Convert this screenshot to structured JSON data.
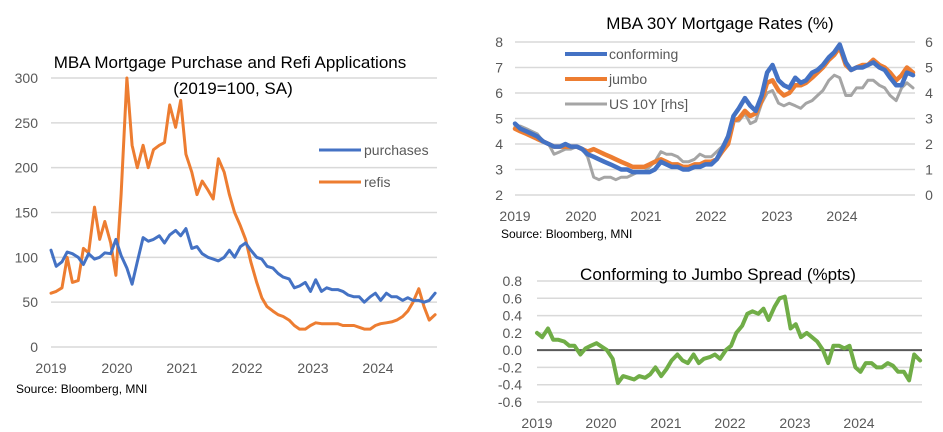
{
  "chart_data": [
    {
      "id": "applications",
      "type": "line",
      "title": "MBA Mortgage Purchase and Refi Applications",
      "subtitle": "(2019=100, SA)",
      "source": "Source: Bloomberg, MNI",
      "xlabel": "",
      "ylabel": "",
      "x_ticks": [
        "2019",
        "2020",
        "2021",
        "2022",
        "2023",
        "2024"
      ],
      "x_range": [
        2019.0,
        2024.95
      ],
      "ylim": [
        0,
        300
      ],
      "y_ticks": [
        "0",
        "50",
        "100",
        "150",
        "200",
        "250",
        "300"
      ],
      "y_tick_values": [
        0,
        50,
        100,
        150,
        200,
        250,
        300
      ],
      "grid": true,
      "legend": "right",
      "x": [
        2019.0,
        2019.08,
        2019.17,
        2019.25,
        2019.33,
        2019.42,
        2019.5,
        2019.58,
        2019.67,
        2019.75,
        2019.83,
        2019.92,
        2020.0,
        2020.08,
        2020.17,
        2020.25,
        2020.33,
        2020.42,
        2020.5,
        2020.58,
        2020.67,
        2020.75,
        2020.83,
        2020.92,
        2021.0,
        2021.08,
        2021.17,
        2021.25,
        2021.33,
        2021.42,
        2021.5,
        2021.58,
        2021.67,
        2021.75,
        2021.83,
        2021.92,
        2022.0,
        2022.08,
        2022.17,
        2022.25,
        2022.33,
        2022.42,
        2022.5,
        2022.58,
        2022.67,
        2022.75,
        2022.83,
        2022.92,
        2023.0,
        2023.08,
        2023.17,
        2023.25,
        2023.33,
        2023.42,
        2023.5,
        2023.58,
        2023.67,
        2023.75,
        2023.83,
        2023.92,
        2024.0,
        2024.08,
        2024.17,
        2024.25,
        2024.33,
        2024.42,
        2024.5,
        2024.58,
        2024.67,
        2024.75,
        2024.83,
        2024.92
      ],
      "series": [
        {
          "name": "purchases",
          "color": "#4472c4",
          "values": [
            108,
            90,
            95,
            106,
            104,
            100,
            92,
            104,
            98,
            100,
            105,
            104,
            120,
            102,
            88,
            70,
            95,
            122,
            118,
            120,
            124,
            116,
            125,
            130,
            124,
            132,
            110,
            112,
            104,
            100,
            98,
            96,
            100,
            108,
            100,
            112,
            116,
            108,
            100,
            98,
            90,
            88,
            82,
            78,
            76,
            66,
            68,
            72,
            62,
            75,
            62,
            66,
            64,
            64,
            62,
            58,
            56,
            56,
            50,
            56,
            60,
            52,
            60,
            56,
            56,
            52,
            55,
            52,
            52,
            50,
            52,
            60
          ]
        },
        {
          "name": "refis",
          "color": "#ed7d31",
          "values": [
            60,
            62,
            66,
            100,
            72,
            74,
            110,
            105,
            156,
            120,
            140,
            116,
            80,
            170,
            300,
            225,
            200,
            225,
            200,
            220,
            225,
            228,
            270,
            245,
            275,
            215,
            195,
            170,
            185,
            175,
            165,
            210,
            195,
            170,
            150,
            135,
            120,
            95,
            72,
            55,
            45,
            40,
            36,
            34,
            30,
            24,
            20,
            20,
            24,
            27,
            26,
            26,
            26,
            26,
            24,
            24,
            24,
            22,
            20,
            20,
            24,
            26,
            27,
            28,
            30,
            34,
            40,
            50,
            65,
            45,
            30,
            36
          ]
        }
      ]
    },
    {
      "id": "rates",
      "type": "line",
      "title": "MBA 30Y Mortgage Rates (%)",
      "source": "Source: Bloomberg, MNI",
      "x_ticks": [
        "2019",
        "2020",
        "2021",
        "2022",
        "2023",
        "2024"
      ],
      "x_range": [
        2019.0,
        2024.95
      ],
      "ylim": [
        2,
        8
      ],
      "y2lim": [
        0,
        6
      ],
      "y_ticks": [
        "2",
        "3",
        "4",
        "5",
        "6",
        "7",
        "8"
      ],
      "y_tick_values": [
        2,
        3,
        4,
        5,
        6,
        7,
        8
      ],
      "y2_ticks": [
        "0",
        "1",
        "2",
        "3",
        "4",
        "5",
        "6"
      ],
      "y2_tick_values": [
        0,
        1,
        2,
        3,
        4,
        5,
        6
      ],
      "grid": true,
      "legend": "top-left",
      "x": [
        2019.0,
        2019.08,
        2019.17,
        2019.25,
        2019.33,
        2019.42,
        2019.5,
        2019.58,
        2019.67,
        2019.75,
        2019.83,
        2019.92,
        2020.0,
        2020.08,
        2020.17,
        2020.25,
        2020.33,
        2020.42,
        2020.5,
        2020.58,
        2020.67,
        2020.75,
        2020.83,
        2020.92,
        2021.0,
        2021.08,
        2021.17,
        2021.25,
        2021.33,
        2021.42,
        2021.5,
        2021.58,
        2021.67,
        2021.75,
        2021.83,
        2021.92,
        2022.0,
        2022.08,
        2022.17,
        2022.25,
        2022.33,
        2022.42,
        2022.5,
        2022.58,
        2022.67,
        2022.75,
        2022.83,
        2022.92,
        2023.0,
        2023.08,
        2023.17,
        2023.25,
        2023.33,
        2023.42,
        2023.5,
        2023.58,
        2023.67,
        2023.75,
        2023.83,
        2023.92,
        2024.0,
        2024.08,
        2024.17,
        2024.25,
        2024.33,
        2024.42,
        2024.5,
        2024.58,
        2024.67,
        2024.75,
        2024.83,
        2024.92
      ],
      "series": [
        {
          "name": "conforming",
          "axis": "left",
          "color": "#4472c4",
          "values": [
            4.8,
            4.6,
            4.5,
            4.4,
            4.3,
            4.1,
            4.0,
            3.9,
            3.9,
            4.0,
            3.9,
            3.9,
            3.8,
            3.6,
            3.5,
            3.4,
            3.3,
            3.2,
            3.1,
            3.0,
            3.0,
            2.9,
            2.9,
            2.9,
            2.9,
            3.0,
            3.3,
            3.2,
            3.1,
            3.1,
            3.0,
            3.0,
            3.1,
            3.1,
            3.2,
            3.2,
            3.4,
            3.8,
            4.3,
            5.1,
            5.4,
            5.8,
            5.5,
            5.3,
            5.9,
            6.8,
            7.1,
            6.5,
            6.3,
            6.2,
            6.6,
            6.4,
            6.5,
            6.8,
            6.9,
            7.1,
            7.4,
            7.6,
            7.9,
            7.2,
            6.9,
            7.0,
            7.0,
            7.1,
            7.2,
            7.0,
            6.9,
            6.6,
            6.3,
            6.3,
            6.8,
            6.7
          ]
        },
        {
          "name": "jumbo",
          "axis": "left",
          "color": "#ed7d31",
          "values": [
            4.6,
            4.5,
            4.4,
            4.3,
            4.2,
            4.1,
            4.0,
            3.9,
            3.9,
            3.9,
            3.9,
            3.9,
            3.8,
            3.7,
            3.8,
            3.7,
            3.6,
            3.5,
            3.4,
            3.3,
            3.2,
            3.1,
            3.1,
            3.1,
            3.2,
            3.3,
            3.4,
            3.3,
            3.2,
            3.2,
            3.1,
            3.1,
            3.2,
            3.2,
            3.3,
            3.3,
            3.4,
            3.7,
            4.0,
            4.9,
            5.0,
            5.3,
            5.1,
            5.2,
            5.7,
            6.4,
            6.5,
            6.1,
            5.9,
            6.0,
            6.3,
            6.3,
            6.4,
            6.6,
            6.8,
            7.0,
            7.3,
            7.5,
            7.8,
            7.1,
            6.9,
            7.0,
            7.1,
            7.1,
            7.3,
            7.1,
            7.0,
            6.8,
            6.5,
            6.7,
            7.0,
            6.8
          ]
        },
        {
          "name": "US 10Y [rhs]",
          "axis": "right",
          "color": "#a5a5a5",
          "values": [
            2.7,
            2.7,
            2.6,
            2.5,
            2.4,
            2.1,
            2.0,
            1.6,
            1.7,
            1.8,
            1.8,
            1.9,
            1.8,
            1.5,
            0.7,
            0.6,
            0.7,
            0.7,
            0.6,
            0.7,
            0.7,
            0.8,
            0.9,
            0.9,
            1.1,
            1.3,
            1.7,
            1.6,
            1.6,
            1.5,
            1.3,
            1.3,
            1.4,
            1.6,
            1.5,
            1.5,
            1.7,
            1.9,
            2.3,
            2.9,
            2.9,
            3.2,
            2.8,
            2.9,
            3.6,
            4.0,
            4.1,
            3.6,
            3.5,
            3.6,
            3.5,
            3.4,
            3.6,
            3.7,
            3.9,
            4.1,
            4.5,
            4.7,
            4.6,
            3.9,
            3.9,
            4.2,
            4.2,
            4.5,
            4.5,
            4.3,
            4.2,
            3.9,
            3.7,
            4.2,
            4.4,
            4.2
          ]
        }
      ]
    },
    {
      "id": "spread",
      "type": "line",
      "title": "Conforming to Jumbo Spread (%pts)",
      "x_ticks": [
        "2019",
        "2020",
        "2021",
        "2022",
        "2023",
        "2024"
      ],
      "x_range": [
        2019.0,
        2024.95
      ],
      "ylim": [
        -0.6,
        0.8
      ],
      "y_ticks": [
        "0.8",
        "0.6",
        "0.4",
        "0.2",
        "0.0",
        "-0.2",
        "-0.4",
        "-0.6"
      ],
      "y_tick_values": [
        0.8,
        0.6,
        0.4,
        0.2,
        0.0,
        -0.2,
        -0.4,
        -0.6
      ],
      "grid": true,
      "legend": "none",
      "x": [
        2019.0,
        2019.08,
        2019.17,
        2019.25,
        2019.33,
        2019.42,
        2019.5,
        2019.58,
        2019.67,
        2019.75,
        2019.83,
        2019.92,
        2020.0,
        2020.08,
        2020.17,
        2020.25,
        2020.33,
        2020.42,
        2020.5,
        2020.58,
        2020.67,
        2020.75,
        2020.83,
        2020.92,
        2021.0,
        2021.08,
        2021.17,
        2021.25,
        2021.33,
        2021.42,
        2021.5,
        2021.58,
        2021.67,
        2021.75,
        2021.83,
        2021.92,
        2022.0,
        2022.08,
        2022.17,
        2022.25,
        2022.33,
        2022.42,
        2022.5,
        2022.58,
        2022.67,
        2022.75,
        2022.83,
        2022.92,
        2023.0,
        2023.08,
        2023.17,
        2023.25,
        2023.33,
        2023.42,
        2023.5,
        2023.58,
        2023.67,
        2023.75,
        2023.83,
        2023.92,
        2024.0,
        2024.08,
        2024.17,
        2024.25,
        2024.33,
        2024.42,
        2024.5,
        2024.58,
        2024.67,
        2024.75,
        2024.83,
        2024.92
      ],
      "series": [
        {
          "name": "spread",
          "color": "#70ad47",
          "values": [
            0.2,
            0.15,
            0.25,
            0.12,
            0.12,
            0.1,
            0.05,
            0.05,
            -0.05,
            0.02,
            0.05,
            0.08,
            0.04,
            0.0,
            -0.1,
            -0.38,
            -0.3,
            -0.32,
            -0.34,
            -0.3,
            -0.32,
            -0.28,
            -0.2,
            -0.3,
            -0.22,
            -0.12,
            -0.05,
            -0.12,
            -0.15,
            -0.05,
            -0.15,
            -0.1,
            -0.08,
            -0.05,
            -0.1,
            0.0,
            0.05,
            0.2,
            0.28,
            0.42,
            0.45,
            0.42,
            0.48,
            0.35,
            0.5,
            0.6,
            0.62,
            0.25,
            0.3,
            0.15,
            0.2,
            0.15,
            0.1,
            0.0,
            -0.15,
            0.05,
            0.05,
            0.02,
            0.05,
            -0.2,
            -0.25,
            -0.15,
            -0.15,
            -0.2,
            -0.2,
            -0.15,
            -0.18,
            -0.25,
            -0.25,
            -0.35,
            -0.05,
            -0.12
          ]
        }
      ]
    }
  ]
}
